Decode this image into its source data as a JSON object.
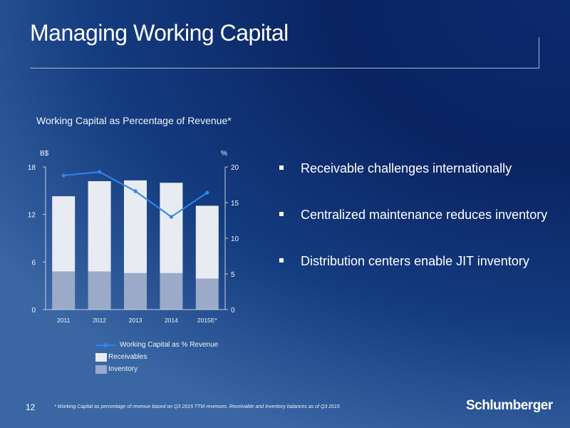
{
  "slide": {
    "title": "Managing Working Capital",
    "page_number": "12",
    "footnote": "* Working Capital as percentage of revenue based on Q3 2015 TTM revenues. Receivable and Inventory balances as of Q3 2015",
    "logo_text": "Schlumberger"
  },
  "bullets": [
    "Receivable challenges internationally",
    "Centralized maintenance reduces inventory",
    "Distribution centers enable JIT inventory"
  ],
  "colors": {
    "receivables": "#e8ebf2",
    "inventory": "#9aaac8",
    "line": "#2f86f0"
  },
  "chart_data": {
    "type": "bar",
    "title": "Working Capital as Percentage of Revenue*",
    "categories": [
      "2011",
      "2012",
      "2013",
      "2014",
      "2015E*"
    ],
    "y_left_label": "B$",
    "y_left_lim": [
      0,
      18
    ],
    "y_left_ticks": [
      "0",
      "6",
      "12",
      "18"
    ],
    "y_right_label": "%",
    "y_right_lim": [
      0,
      20
    ],
    "y_right_ticks": [
      "0",
      "5",
      "10",
      "15",
      "20"
    ],
    "series": [
      {
        "name": "Working Capital as % Revenue",
        "type": "line",
        "axis": "right",
        "values": [
          18.8,
          19.3,
          16.6,
          13.0,
          16.4
        ]
      },
      {
        "name": "Receivables",
        "type": "stacked-bar",
        "axis": "left",
        "values": [
          9.5,
          11.4,
          11.7,
          11.4,
          9.2
        ]
      },
      {
        "name": "Inventory",
        "type": "stacked-bar",
        "axis": "left",
        "values": [
          4.8,
          4.8,
          4.6,
          4.6,
          3.9
        ]
      }
    ],
    "legend_position": "bottom",
    "grid": false
  }
}
